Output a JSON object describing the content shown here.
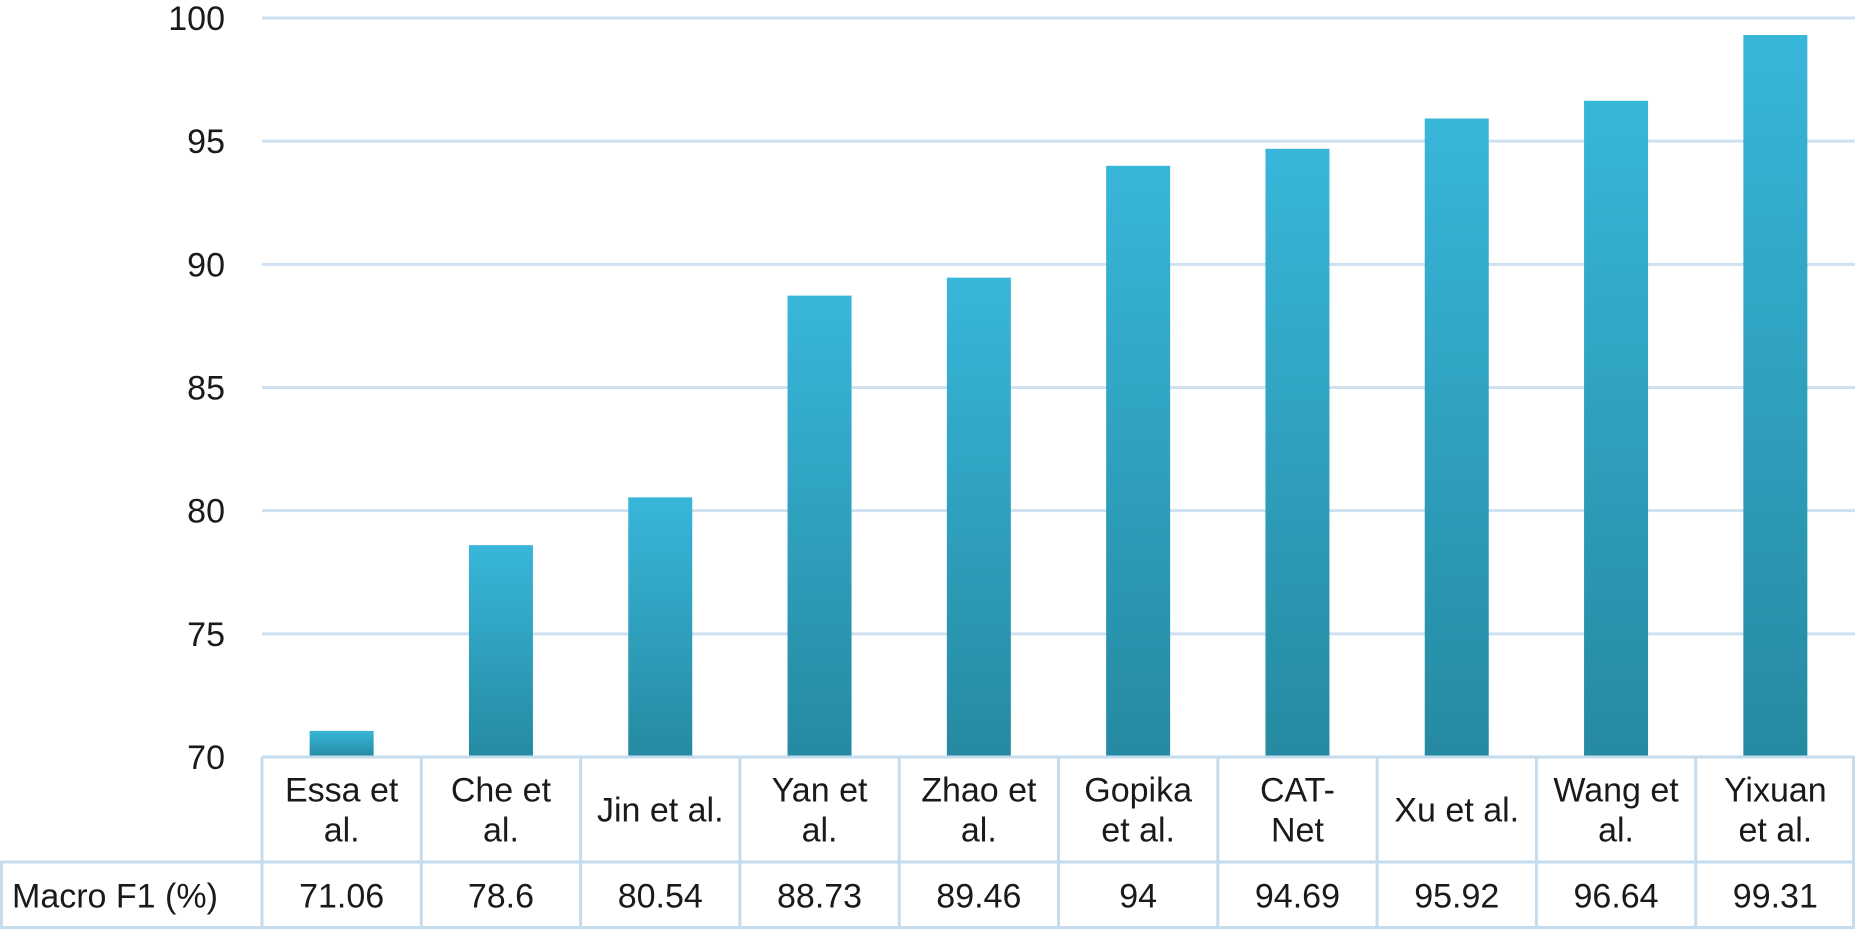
{
  "chart_data": {
    "type": "bar",
    "categories": [
      [
        "Essa et",
        "al."
      ],
      [
        "Che et",
        "al."
      ],
      [
        "Jin et al."
      ],
      [
        "Yan et",
        "al."
      ],
      [
        "Zhao et",
        "al."
      ],
      [
        "Gopika",
        "et al."
      ],
      [
        "CAT-",
        "Net"
      ],
      [
        "Xu et al."
      ],
      [
        "Wang et",
        "al."
      ],
      [
        "Yixuan",
        "et al."
      ]
    ],
    "series": [
      {
        "name": "Macro F1 (%)",
        "values": [
          71.06,
          78.6,
          80.54,
          88.73,
          89.46,
          94,
          94.69,
          95.92,
          96.64,
          99.31
        ],
        "value_labels": [
          "71.06",
          "78.6",
          "80.54",
          "88.73",
          "89.46",
          "94",
          "94.69",
          "95.92",
          "96.64",
          "99.31"
        ]
      }
    ],
    "yticks": [
      "70",
      "75",
      "80",
      "85",
      "90",
      "95",
      "100"
    ],
    "ylim": [
      70,
      100
    ],
    "grid": true,
    "data_table": true,
    "colors": {
      "bar_top": "#38b6da",
      "bar_bottom": "#258aa1",
      "grid": "#cfe0f0",
      "table_border": "#c5dcef"
    }
  }
}
